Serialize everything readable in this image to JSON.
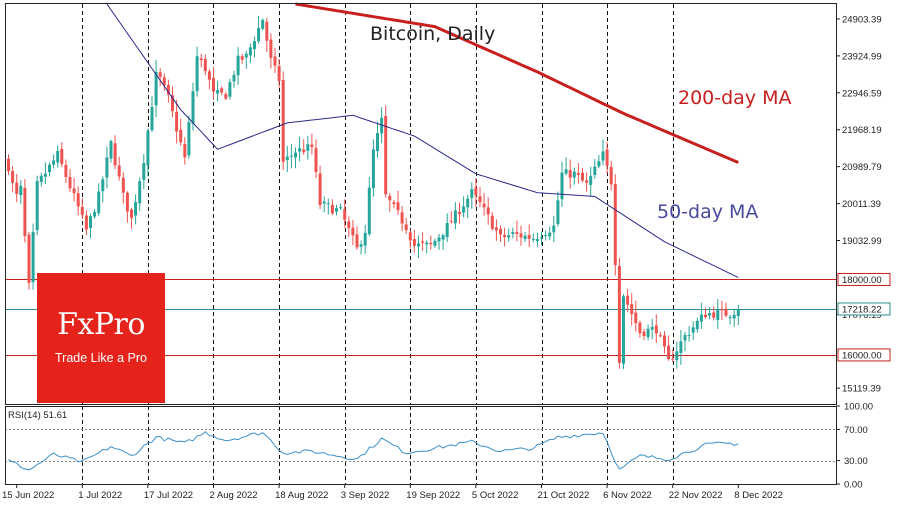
{
  "chart_data": [
    {
      "type": "candlestick",
      "title": "Bitcoin, Daily",
      "ylim": [
        14700,
        25300
      ],
      "y_ticks": [
        "24903.39",
        "23924.99",
        "22946.59",
        "21968.19",
        "20989.79",
        "20011.39",
        "19032.99",
        "17076.19",
        "15119.39"
      ],
      "x_ticks": [
        "15 Jun 2022",
        "1 Jul 2022",
        "17 Jul 2022",
        "2 Aug 2022",
        "18 Aug 2022",
        "3 Sep 2022",
        "19 Sep 2022",
        "5 Oct 2022",
        "21 Oct 2022",
        "6 Nov 2022",
        "22 Nov 2022",
        "8 Dec 2022"
      ],
      "start_date": "2022-06-13",
      "end_date": "2022-12-08",
      "close_anchors": [
        [
          "2022-06-13",
          21000
        ],
        [
          "2022-06-14",
          20500
        ],
        [
          "2022-06-15",
          20200
        ],
        [
          "2022-06-16",
          20400
        ],
        [
          "2022-06-18",
          17800
        ],
        [
          "2022-06-20",
          20500
        ],
        [
          "2022-06-25",
          21300
        ],
        [
          "2022-06-30",
          19900
        ],
        [
          "2022-07-02",
          19300
        ],
        [
          "2022-07-05",
          20200
        ],
        [
          "2022-07-08",
          21600
        ],
        [
          "2022-07-11",
          20200
        ],
        [
          "2022-07-13",
          19600
        ],
        [
          "2022-07-16",
          21200
        ],
        [
          "2022-07-19",
          23400
        ],
        [
          "2022-07-20",
          23300
        ],
        [
          "2022-07-22",
          22800
        ],
        [
          "2022-07-26",
          21200
        ],
        [
          "2022-07-29",
          23900
        ],
        [
          "2022-07-31",
          23600
        ],
        [
          "2022-08-02",
          22900
        ],
        [
          "2022-08-05",
          22900
        ],
        [
          "2022-08-08",
          23800
        ],
        [
          "2022-08-10",
          23900
        ],
        [
          "2022-08-14",
          24900
        ],
        [
          "2022-08-16",
          23800
        ],
        [
          "2022-08-18",
          23300
        ],
        [
          "2022-08-19",
          21100
        ],
        [
          "2022-08-22",
          21400
        ],
        [
          "2022-08-26",
          21500
        ],
        [
          "2022-08-28",
          20000
        ],
        [
          "2022-09-02",
          19800
        ],
        [
          "2022-09-06",
          18800
        ],
        [
          "2022-09-08",
          19300
        ],
        [
          "2022-09-10",
          21400
        ],
        [
          "2022-09-12",
          22200
        ],
        [
          "2022-09-13",
          20200
        ],
        [
          "2022-09-18",
          19400
        ],
        [
          "2022-09-20",
          18900
        ],
        [
          "2022-09-24",
          18900
        ],
        [
          "2022-09-28",
          19400
        ],
        [
          "2022-10-04",
          20300
        ],
        [
          "2022-10-06",
          20000
        ],
        [
          "2022-10-11",
          19100
        ],
        [
          "2022-10-14",
          19200
        ],
        [
          "2022-10-19",
          19100
        ],
        [
          "2022-10-24",
          19400
        ],
        [
          "2022-10-26",
          20800
        ],
        [
          "2022-10-29",
          20800
        ],
        [
          "2022-11-01",
          20500
        ],
        [
          "2022-11-05",
          21300
        ],
        [
          "2022-11-07",
          20600
        ],
        [
          "2022-11-08",
          18500
        ],
        [
          "2022-11-09",
          15900
        ],
        [
          "2022-11-10",
          17600
        ],
        [
          "2022-11-14",
          16600
        ],
        [
          "2022-11-18",
          16700
        ],
        [
          "2022-11-21",
          15800
        ],
        [
          "2022-11-25",
          16500
        ],
        [
          "2022-11-30",
          17100
        ],
        [
          "2022-12-04",
          17100
        ],
        [
          "2022-12-06",
          17100
        ],
        [
          "2022-12-08",
          17218.22
        ]
      ],
      "ma200_anchors": [
        [
          "2022-08-22",
          25300
        ],
        [
          "2022-09-25",
          24700
        ],
        [
          "2022-10-20",
          23500
        ],
        [
          "2022-11-10",
          22400
        ],
        [
          "2022-12-08",
          21100
        ]
      ],
      "ma50_anchors": [
        [
          "2022-07-07",
          25300
        ],
        [
          "2022-07-25",
          22500
        ],
        [
          "2022-08-03",
          21450
        ],
        [
          "2022-08-20",
          22150
        ],
        [
          "2022-09-05",
          22350
        ],
        [
          "2022-09-20",
          21800
        ],
        [
          "2022-10-05",
          20800
        ],
        [
          "2022-10-20",
          20300
        ],
        [
          "2022-11-03",
          20200
        ],
        [
          "2022-11-20",
          19000
        ],
        [
          "2022-12-08",
          18050
        ]
      ],
      "series": [
        {
          "name": "200-day MA",
          "color": "#c8201f"
        },
        {
          "name": "50-day MA",
          "color": "#2a2a8a"
        }
      ],
      "horizontal_levels": [
        {
          "label": "18000.00",
          "value": 18000,
          "color": "#c8201f"
        },
        {
          "label": "17218.22",
          "value": 17218.22,
          "color": "#2b8e8e"
        },
        {
          "label": "16000.00",
          "value": 16000,
          "color": "#c8201f"
        }
      ],
      "colors": {
        "up": "#26a69a",
        "down": "#ef5350"
      }
    },
    {
      "type": "line",
      "title": "RSI(14) 51.61",
      "ylim": [
        0,
        100
      ],
      "y_ticks": [
        "100.00",
        "70.00",
        "30.00",
        "0.00"
      ],
      "levels": [
        70,
        30
      ],
      "color": "#3c8fc8",
      "anchors": [
        [
          "2022-06-13",
          30
        ],
        [
          "2022-06-18",
          18
        ],
        [
          "2022-06-24",
          38
        ],
        [
          "2022-07-01",
          28
        ],
        [
          "2022-07-08",
          48
        ],
        [
          "2022-07-13",
          36
        ],
        [
          "2022-07-19",
          60
        ],
        [
          "2022-07-26",
          52
        ],
        [
          "2022-07-31",
          66
        ],
        [
          "2022-08-05",
          56
        ],
        [
          "2022-08-14",
          66
        ],
        [
          "2022-08-19",
          40
        ],
        [
          "2022-08-26",
          42
        ],
        [
          "2022-09-06",
          32
        ],
        [
          "2022-09-12",
          58
        ],
        [
          "2022-09-18",
          40
        ],
        [
          "2022-10-04",
          54
        ],
        [
          "2022-10-11",
          42
        ],
        [
          "2022-10-19",
          46
        ],
        [
          "2022-10-25",
          60
        ],
        [
          "2022-11-05",
          66
        ],
        [
          "2022-11-09",
          18
        ],
        [
          "2022-11-14",
          36
        ],
        [
          "2022-11-21",
          32
        ],
        [
          "2022-11-30",
          50
        ],
        [
          "2022-12-04",
          52
        ],
        [
          "2022-12-08",
          51.61
        ]
      ]
    }
  ],
  "logo": {
    "brand": "FxPro",
    "slogan": "Trade Like a Pro"
  }
}
